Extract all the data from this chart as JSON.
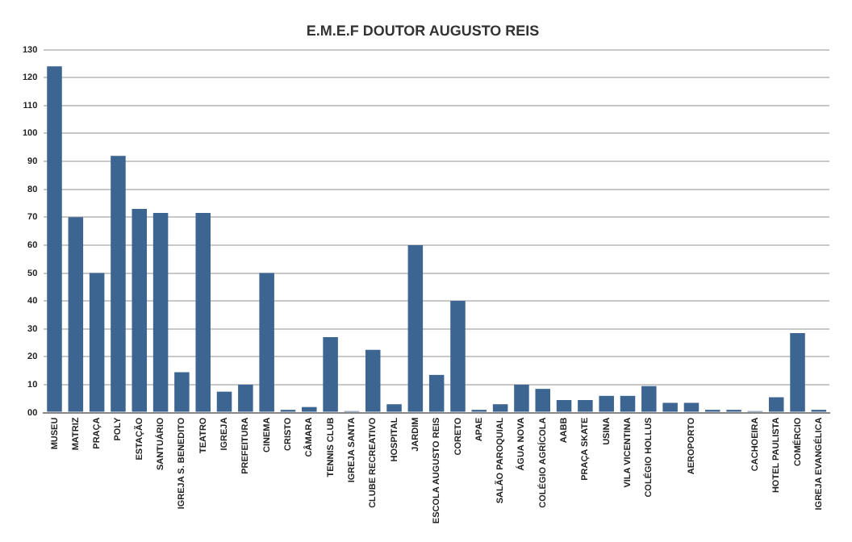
{
  "chart_data": {
    "type": "bar",
    "title": "E.M.E.F DOUTOR AUGUSTO REIS",
    "categories": [
      "MUSEU",
      "MATRIZ",
      "PRAÇA",
      "POLY",
      "ESTAÇÃO",
      "SANTUÁRIO",
      "IGREJA S. BENEDITO",
      "TEATRO",
      "IGREJA",
      "PREFEITURA",
      "CINEMA",
      "CRISTO",
      "CÂMARA",
      "TENNIS CLUB",
      "IGREJA SANTA",
      "CLUBE RECREATIVO",
      "HOSPITAL",
      "JARDIM",
      "ESCOLA AUGUSTO REIS",
      "CORETO",
      "APAE",
      "SALÃO PAROQUIAL",
      "ÁGUA NOVA",
      "COLÉGIO AGRÍCOLA",
      "AABB",
      "PRAÇA SKATE",
      "USINA",
      "VILA VICENTINA",
      "COLÉGIO HOLLUS",
      null,
      "AEROPORTO",
      null,
      null,
      "CACHOEIRA",
      "HOTEL PAULISTA",
      "COMÉRCIO",
      "IGREJA EVANGÉLICA"
    ],
    "values": [
      124,
      70,
      50,
      92,
      73,
      71.5,
      14.5,
      71.5,
      7.5,
      10,
      50,
      1,
      2,
      27,
      0.5,
      22.5,
      3,
      60,
      13.5,
      40,
      1,
      3,
      10,
      8.5,
      4.5,
      4.5,
      6,
      6,
      9.5,
      3.5,
      3.5,
      1,
      1,
      0.5,
      5.5,
      28.5,
      1
    ],
    "color": "#3d6591",
    "ylim": [
      0,
      130
    ],
    "yticks": [
      {
        "value": 0,
        "label": "00"
      },
      10,
      20,
      30,
      40,
      50,
      60,
      70,
      80,
      90,
      100,
      110,
      120,
      130
    ],
    "grid": "y"
  }
}
